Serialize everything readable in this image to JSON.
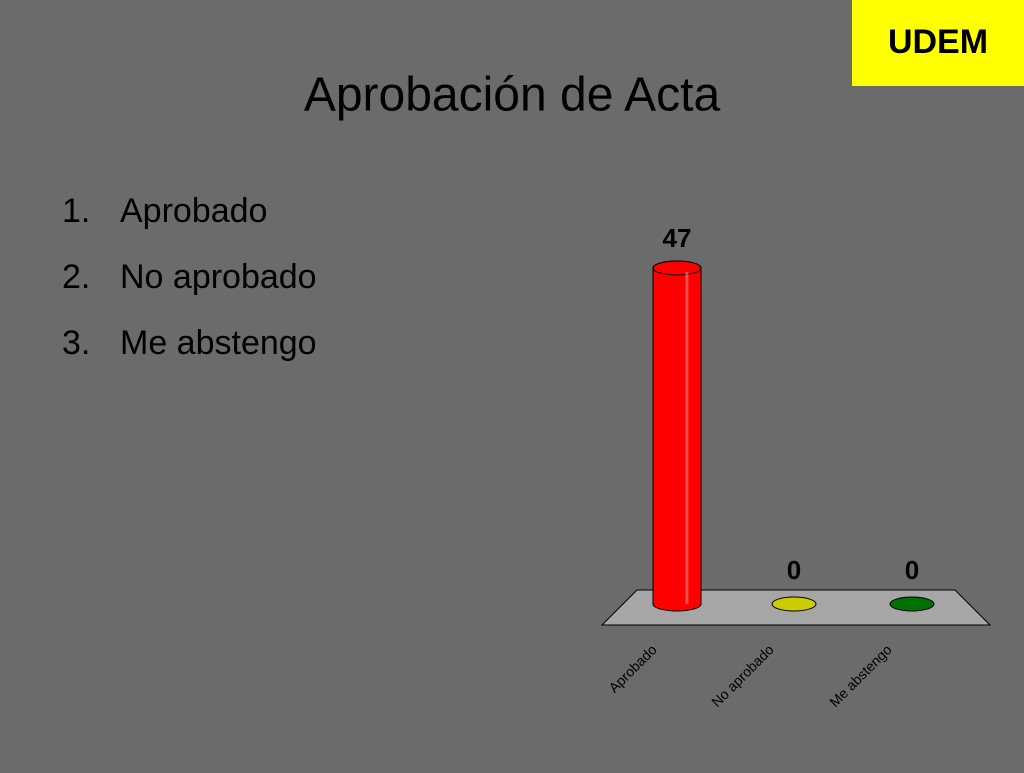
{
  "logo": "UDEM",
  "title": "Aprobación de Acta",
  "list": [
    {
      "number": "1.",
      "text": "Aprobado"
    },
    {
      "number": "2.",
      "text": "No aprobado"
    },
    {
      "number": "3.",
      "text": "Me abstengo"
    }
  ],
  "chart_data": {
    "type": "bar",
    "categories": [
      "Aprobado",
      "No aprobado",
      "Me abstengo"
    ],
    "values": [
      47,
      0,
      0
    ],
    "colors": [
      "#ff0000",
      "#cccc00",
      "#007000"
    ]
  }
}
